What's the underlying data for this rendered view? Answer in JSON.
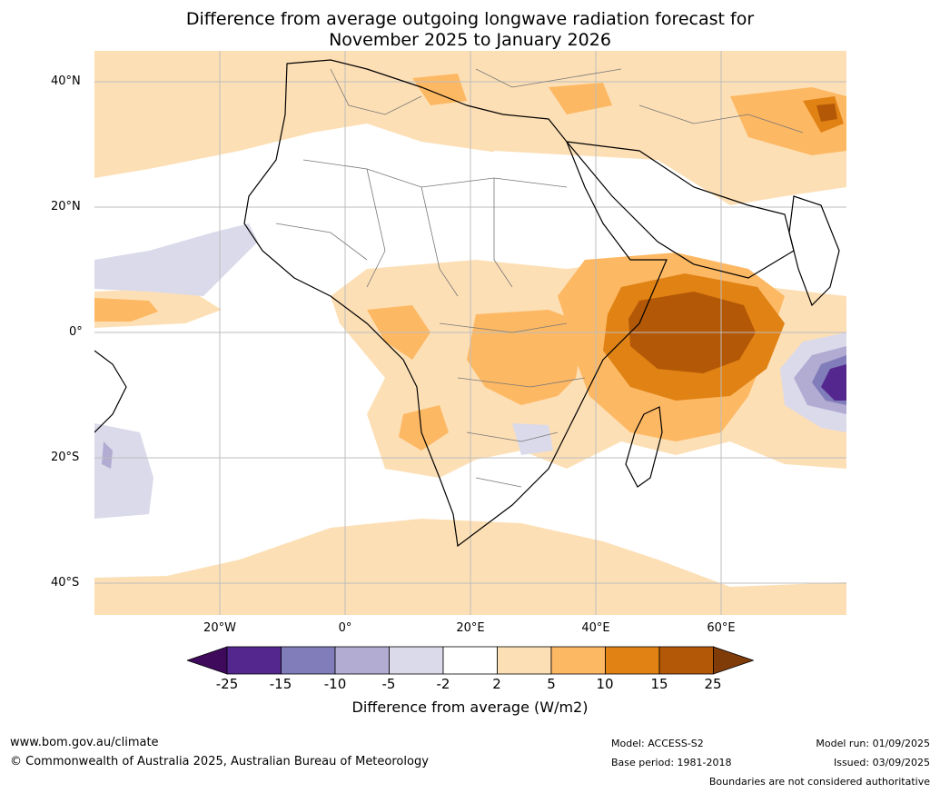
{
  "title_line1": "Difference from average outgoing longwave radiation forecast for",
  "title_line2": "November 2025 to January 2026",
  "map": {
    "lat_labels": [
      "40°N",
      "20°N",
      "0°",
      "20°S",
      "40°S"
    ],
    "lon_labels": [
      "20°W",
      "0°",
      "20°E",
      "40°E",
      "60°E"
    ],
    "lat_range": [
      -45,
      45
    ],
    "lon_range": [
      -40,
      80
    ]
  },
  "colorbar": {
    "ticks": [
      "-25",
      "-15",
      "-10",
      "-5",
      "-2",
      "2",
      "5",
      "10",
      "15",
      "25"
    ],
    "colors": [
      "#3f0a5c",
      "#54278f",
      "#807dba",
      "#b2abd2",
      "#dadaeb",
      "#ffffff",
      "#fddfb5",
      "#fdb863",
      "#e08214",
      "#b35806",
      "#7f3b08"
    ],
    "title": "Difference from average (W/m2)"
  },
  "footer": {
    "website": "www.bom.gov.au/climate",
    "copyright": "© Commonwealth of Australia 2025, Australian Bureau of Meteorology",
    "model": "Model: ACCESS-S2",
    "base_period": "Base period: 1981-2018",
    "model_run": "Model run: 01/09/2025",
    "issued": "Issued: 03/09/2025",
    "disclaimer": "Boundaries are not considered authoritative"
  }
}
